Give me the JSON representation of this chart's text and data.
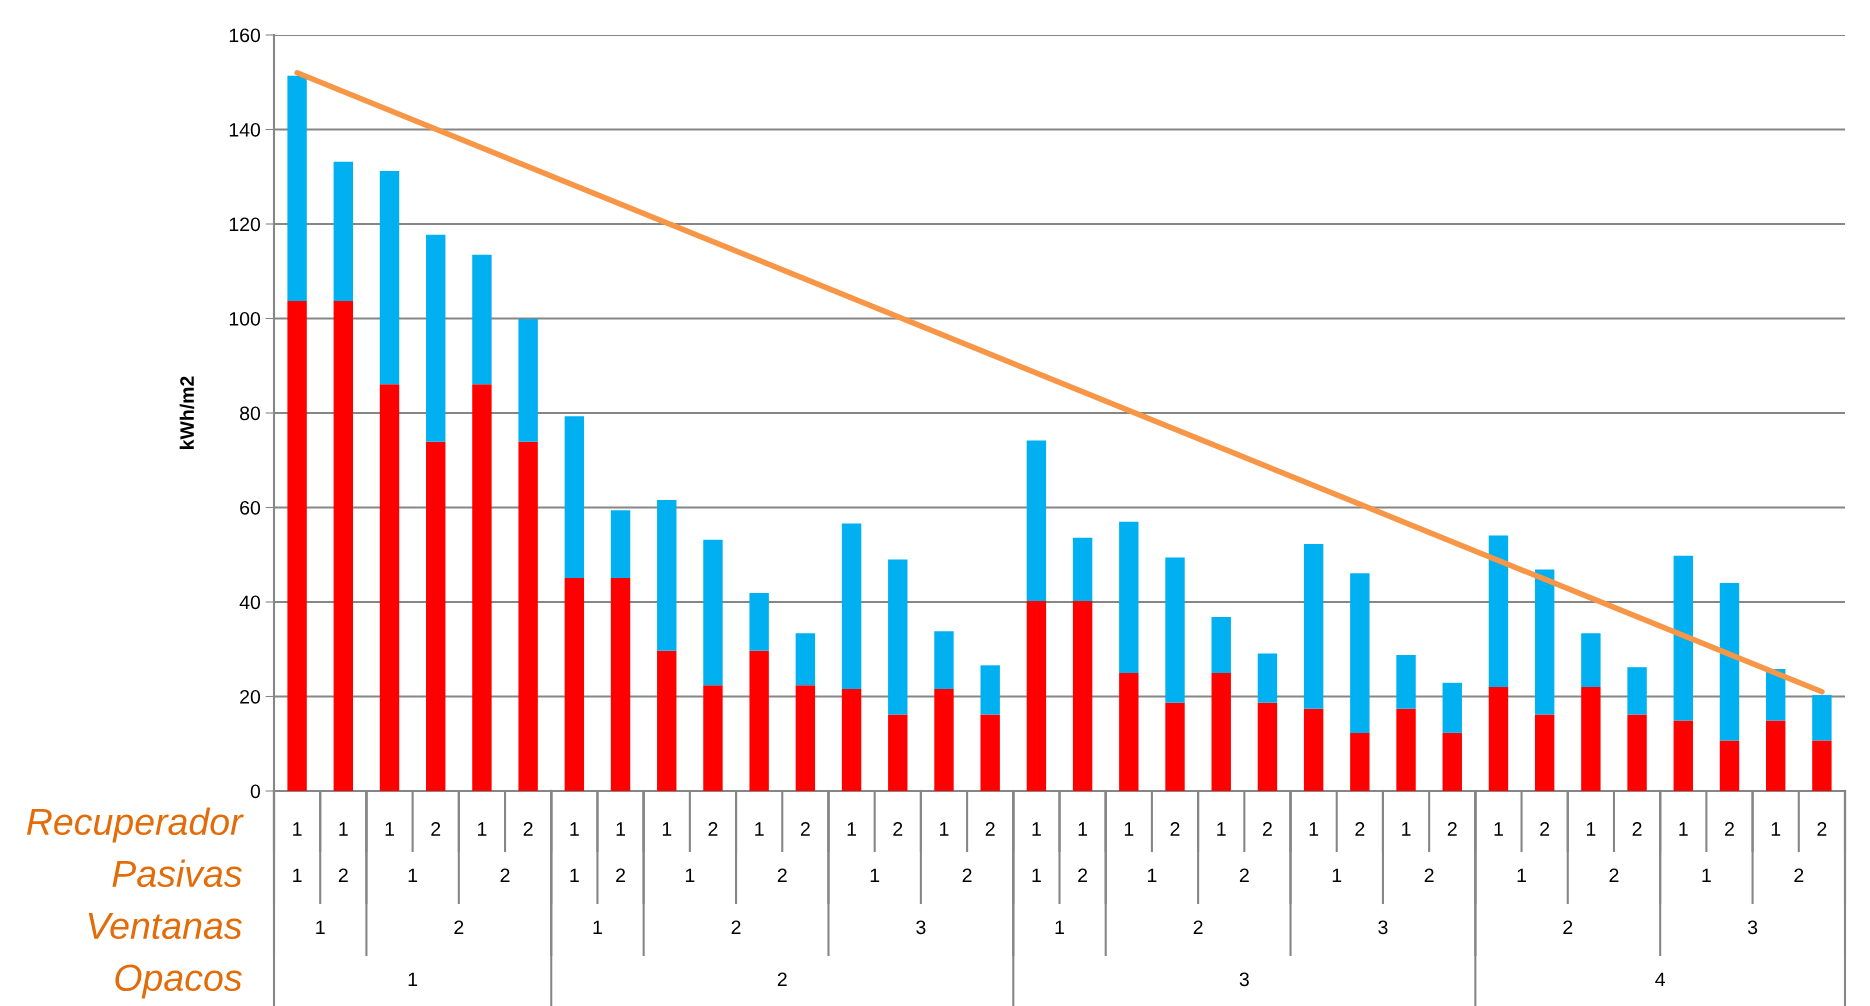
{
  "chart_data": {
    "type": "bar",
    "stacked": true,
    "ylabel": "kWh/m2",
    "categories": [
      "1",
      "1",
      "1",
      "2",
      "1",
      "2",
      "1",
      "1",
      "1",
      "2",
      "1",
      "2",
      "1",
      "2",
      "1",
      "2",
      "1",
      "1",
      "1",
      "2",
      "1",
      "2",
      "1",
      "2",
      "1",
      "2",
      "1",
      "2",
      "1",
      "2",
      "1",
      "2",
      "1",
      "2"
    ],
    "series": [
      {
        "color": "#ff0000",
        "values": [
          103.7,
          103.7,
          86.1,
          73.9,
          86.1,
          73.9,
          45.1,
          45.1,
          29.7,
          22.4,
          29.7,
          22.4,
          21.6,
          16.2,
          21.6,
          16.2,
          40.2,
          40.2,
          25.0,
          18.7,
          25.0,
          18.7,
          17.4,
          12.3,
          17.4,
          12.3,
          22.0,
          16.2,
          22.0,
          16.2,
          14.9,
          10.7,
          14.9,
          10.7
        ]
      },
      {
        "type": "line",
        "color": "#f79646",
        "values": [
          152,
          null,
          null,
          null,
          null,
          null,
          null,
          null,
          null,
          null,
          null,
          null,
          null,
          null,
          null,
          null,
          null,
          null,
          null,
          null,
          null,
          null,
          null,
          null,
          null,
          null,
          null,
          null,
          null,
          null,
          null,
          null,
          null,
          21
        ]
      },
      {
        "color": "#00b0f0",
        "values": [
          47.7,
          29.5,
          45.1,
          43.8,
          27.4,
          26.0,
          34.2,
          14.3,
          31.9,
          30.8,
          12.2,
          11.0,
          35.0,
          32.8,
          12.2,
          10.4,
          34.0,
          13.4,
          32.0,
          30.7,
          11.8,
          10.4,
          34.9,
          33.8,
          11.4,
          10.6,
          32.1,
          30.7,
          11.4,
          10.0,
          34.9,
          33.3,
          10.9,
          9.6
        ]
      }
    ],
    "ylim": [
      0,
      160
    ],
    "yticks": [
      0,
      20,
      40,
      60,
      80,
      100,
      120,
      140,
      160
    ],
    "grid": "y",
    "legend": false,
    "annotations": [
      "Recuperador",
      "Pasivas",
      "Ventanas",
      "Opacos",
      "1",
      "2",
      "1",
      "2",
      "1",
      "2",
      "1",
      "2",
      "1",
      "2",
      "1",
      "2",
      "1",
      "2",
      "1",
      "2",
      "1",
      "2",
      "1",
      "2",
      "1",
      "2",
      "1",
      "2",
      "3",
      "1",
      "2",
      "3",
      "2",
      "3",
      "1",
      "2",
      "3",
      "4"
    ]
  }
}
